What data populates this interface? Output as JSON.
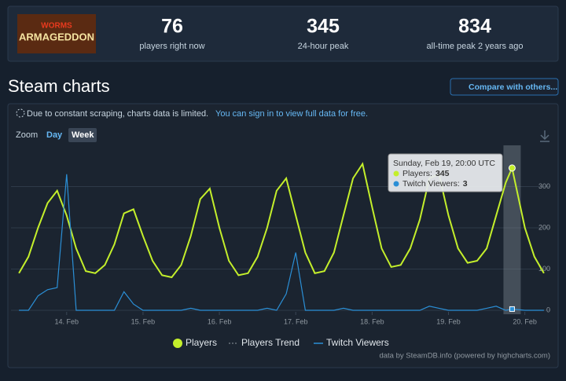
{
  "header": {
    "logo": {
      "line1": "WORMS",
      "line2": "ARMAGEDDON"
    },
    "stats": [
      {
        "value": "76",
        "label": "players right now"
      },
      {
        "value": "345",
        "label": "24-hour peak"
      },
      {
        "value": "834",
        "label": "all-time peak 2 years ago"
      }
    ]
  },
  "section_title": "Steam charts",
  "compare_button": "Compare with others...",
  "notice": {
    "text": "Due to constant scraping, charts data is limited.",
    "link": "You can sign in to view full data for free."
  },
  "zoom": {
    "label": "Zoom",
    "options": [
      "Day",
      "Week"
    ]
  },
  "chart_data": {
    "type": "line",
    "x": [
      13.375,
      13.5,
      13.625,
      13.75,
      13.875,
      14,
      14.125,
      14.25,
      14.375,
      14.5,
      14.625,
      14.75,
      14.875,
      15,
      15.125,
      15.25,
      15.375,
      15.5,
      15.625,
      15.75,
      15.875,
      16,
      16.125,
      16.25,
      16.375,
      16.5,
      16.625,
      16.75,
      16.875,
      17,
      17.125,
      17.25,
      17.375,
      17.5,
      17.625,
      17.75,
      17.875,
      18,
      18.125,
      18.25,
      18.375,
      18.5,
      18.625,
      18.75,
      18.875,
      19,
      19.125,
      19.25,
      19.375,
      19.5,
      19.625,
      19.75,
      19.833,
      20,
      20.125,
      20.25
    ],
    "series": [
      {
        "name": "Players",
        "color": "#c4ef2b",
        "values": [
          90,
          130,
          200,
          260,
          290,
          230,
          150,
          95,
          90,
          110,
          160,
          235,
          245,
          180,
          120,
          85,
          80,
          110,
          180,
          270,
          295,
          200,
          120,
          85,
          90,
          130,
          200,
          290,
          320,
          230,
          140,
          90,
          95,
          140,
          230,
          320,
          355,
          250,
          150,
          105,
          110,
          150,
          220,
          320,
          330,
          230,
          150,
          115,
          120,
          150,
          230,
          310,
          345,
          200,
          130,
          90
        ]
      },
      {
        "name": "Twitch Viewers",
        "color": "#2b8fd6",
        "values": [
          0,
          0,
          35,
          50,
          55,
          330,
          0,
          0,
          0,
          0,
          0,
          45,
          15,
          0,
          0,
          0,
          0,
          0,
          5,
          0,
          0,
          0,
          0,
          0,
          0,
          0,
          5,
          0,
          40,
          140,
          0,
          0,
          0,
          0,
          5,
          0,
          0,
          0,
          0,
          0,
          0,
          0,
          0,
          10,
          5,
          0,
          0,
          0,
          0,
          5,
          10,
          0,
          3,
          0,
          0,
          0
        ]
      }
    ],
    "trend": {
      "name": "Players Trend",
      "color": "#8f98a0"
    },
    "xlim": [
      13.333,
      20.333
    ],
    "xticks": [
      {
        "value": 14,
        "label": "14. Feb"
      },
      {
        "value": 15,
        "label": "15. Feb"
      },
      {
        "value": 16,
        "label": "16. Feb"
      },
      {
        "value": 17,
        "label": "17. Feb"
      },
      {
        "value": 18,
        "label": "18. Feb"
      },
      {
        "value": 19,
        "label": "19. Feb"
      },
      {
        "value": 20,
        "label": "20. Feb"
      }
    ],
    "ylim": [
      0,
      400
    ],
    "yticks": [
      0,
      100,
      200,
      300
    ],
    "grid": true,
    "tooltip": {
      "date": "Sunday, Feb 19, 20:00 UTC",
      "players_label": "Players:",
      "twitch_label": "Twitch Viewers:"
    },
    "credit": "data by SteamDB.info (powered by highcharts.com)"
  }
}
